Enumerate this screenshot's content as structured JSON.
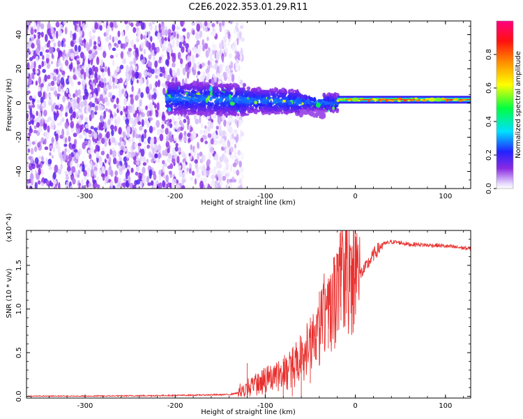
{
  "title": "C2E6.2022.353.01.29.R11",
  "chart_data": [
    {
      "type": "heatmap",
      "xlabel": "Height of straight line (km)",
      "ylabel": "Frequency (Hz)",
      "xlim": [
        -365,
        128
      ],
      "ylim": [
        -50,
        48
      ],
      "xticks": [
        -300,
        -200,
        -100,
        0,
        100
      ],
      "yticks": [
        -40,
        -20,
        0,
        20,
        40
      ],
      "grid": false,
      "colorbar": {
        "label": "Normalized spectral amplitude",
        "range": [
          0.0,
          1.0
        ],
        "ticks": [
          0.0,
          0.2,
          0.4,
          0.6,
          0.8
        ],
        "tick_labels": [
          "0.0",
          "0.2",
          "0.4",
          "0.6",
          "0.8"
        ],
        "colormap": "rainbow (white-violet-blue-cyan-green-yellow-red-magenta)"
      },
      "noise_region": {
        "x": [
          -365,
          -135
        ],
        "y": [
          -50,
          48
        ],
        "amplitude": 0.2
      },
      "signal_band": {
        "x": [
          -205,
          -20,
          128
        ],
        "center_freq": [
          3,
          0,
          2
        ],
        "description": "broadband noise left of -130 km; band narrows toward ~2 Hz; strong narrow line from -20 km to end"
      }
    },
    {
      "type": "line",
      "xlabel": "Height of straight line (km)",
      "ylabel": "SNR (10 * v/v)",
      "y_multiplier": "(x10^4)",
      "xlim": [
        -365,
        128
      ],
      "ylim": [
        -0.02,
        1.9
      ],
      "xticks": [
        -300,
        -200,
        -100,
        0,
        100
      ],
      "yticks": [
        0.0,
        0.5,
        1.0,
        1.5
      ],
      "ytick_labels": [
        "0.0",
        "0.5",
        "1.0",
        "1.5"
      ],
      "grid": false,
      "series": [
        {
          "color": "#e8302e",
          "x": [
            -365,
            -300,
            -200,
            -140,
            -125,
            -110,
            -100,
            -90,
            -80,
            -70,
            -60,
            -50,
            -40,
            -30,
            -20,
            -15,
            -10,
            0,
            10,
            20,
            30,
            40,
            50,
            60,
            70,
            80,
            90,
            100,
            110,
            120,
            128
          ],
          "y": [
            0.0,
            0.0,
            0.01,
            0.02,
            0.05,
            0.12,
            0.15,
            0.2,
            0.24,
            0.3,
            0.4,
            0.55,
            0.75,
            0.95,
            1.15,
            1.3,
            1.35,
            1.35,
            1.45,
            1.62,
            1.74,
            1.77,
            1.76,
            1.74,
            1.74,
            1.73,
            1.73,
            1.72,
            1.71,
            1.7,
            1.69
          ],
          "spikes": [
            {
              "x": -120,
              "y": 0.38
            },
            {
              "x": -100,
              "y": 0.32
            },
            {
              "x": -80,
              "y": 0.43
            },
            {
              "x": -70,
              "y": 0.55
            },
            {
              "x": -60,
              "y": 0.68
            },
            {
              "x": -50,
              "y": 0.9
            },
            {
              "x": -40,
              "y": 1.2
            },
            {
              "x": -30,
              "y": 1.35
            },
            {
              "x": -20,
              "y": 1.62
            },
            {
              "x": -16,
              "y": 1.9
            },
            {
              "x": -10,
              "y": 1.7
            },
            {
              "x": -5,
              "y": 1.5
            }
          ]
        }
      ]
    }
  ]
}
